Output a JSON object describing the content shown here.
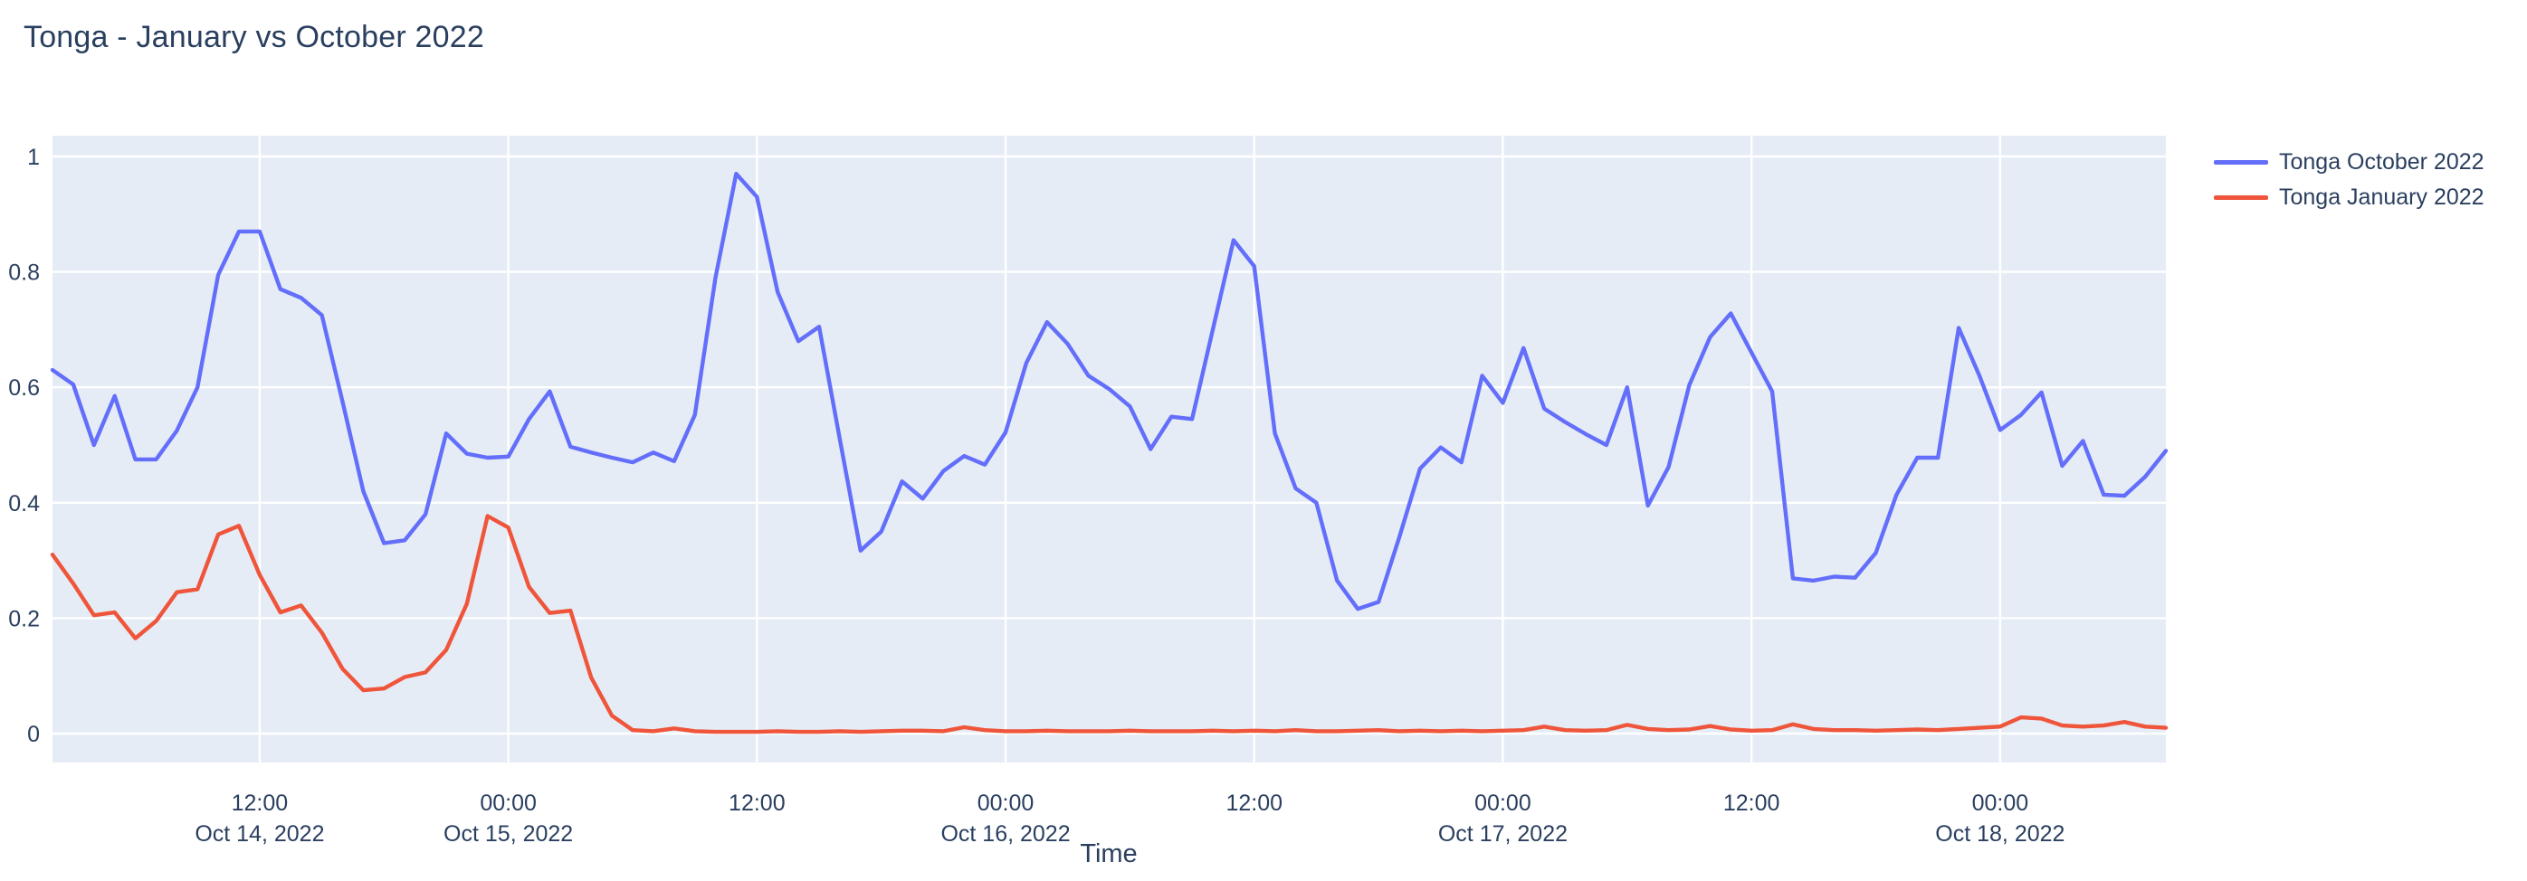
{
  "chart": {
    "title": "Tonga - January vs October 2022",
    "colors": {
      "title_text": "#2a3f5f",
      "plot_background": "#e5ecf6",
      "grid": "#ffffff",
      "page_background": "#ffffff",
      "october_line": "#636efa",
      "january_line": "#ef553b"
    }
  },
  "legend": {
    "items": [
      {
        "label": "Tonga October 2022",
        "color": "#636efa"
      },
      {
        "label": "Tonga January 2022",
        "color": "#ef553b"
      }
    ]
  },
  "chart_data": {
    "type": "line",
    "title": "Tonga - January vs October 2022",
    "xlabel": "Time",
    "ylabel": "",
    "ylim": [
      0,
      1
    ],
    "grid": true,
    "legend_position": "right-outside-top",
    "y_ticks": [
      "0",
      "0.2",
      "0.4",
      "0.6",
      "0.8",
      "1"
    ],
    "x_ticks": [
      {
        "hour_offset": 10,
        "line1": "12:00",
        "line2": "Oct 14, 2022"
      },
      {
        "hour_offset": 22,
        "line1": "00:00",
        "line2": "Oct 15, 2022"
      },
      {
        "hour_offset": 34,
        "line1": "12:00",
        "line2": ""
      },
      {
        "hour_offset": 46,
        "line1": "00:00",
        "line2": "Oct 16, 2022"
      },
      {
        "hour_offset": 58,
        "line1": "12:00",
        "line2": ""
      },
      {
        "hour_offset": 70,
        "line1": "00:00",
        "line2": "Oct 17, 2022"
      },
      {
        "hour_offset": 82,
        "line1": "12:00",
        "line2": ""
      },
      {
        "hour_offset": 94,
        "line1": "00:00",
        "line2": "Oct 18, 2022"
      }
    ],
    "x": [
      "2022-10-14 02:00",
      "2022-10-14 03:00",
      "2022-10-14 04:00",
      "2022-10-14 05:00",
      "2022-10-14 06:00",
      "2022-10-14 07:00",
      "2022-10-14 08:00",
      "2022-10-14 09:00",
      "2022-10-14 10:00",
      "2022-10-14 11:00",
      "2022-10-14 12:00",
      "2022-10-14 13:00",
      "2022-10-14 14:00",
      "2022-10-14 15:00",
      "2022-10-14 16:00",
      "2022-10-14 17:00",
      "2022-10-14 18:00",
      "2022-10-14 19:00",
      "2022-10-14 20:00",
      "2022-10-14 21:00",
      "2022-10-14 22:00",
      "2022-10-14 23:00",
      "2022-10-15 00:00",
      "2022-10-15 01:00",
      "2022-10-15 02:00",
      "2022-10-15 03:00",
      "2022-10-15 04:00",
      "2022-10-15 05:00",
      "2022-10-15 06:00",
      "2022-10-15 07:00",
      "2022-10-15 08:00",
      "2022-10-15 09:00",
      "2022-10-15 10:00",
      "2022-10-15 11:00",
      "2022-10-15 12:00",
      "2022-10-15 13:00",
      "2022-10-15 14:00",
      "2022-10-15 15:00",
      "2022-10-15 16:00",
      "2022-10-15 17:00",
      "2022-10-15 18:00",
      "2022-10-15 19:00",
      "2022-10-15 20:00",
      "2022-10-15 21:00",
      "2022-10-15 22:00",
      "2022-10-15 23:00",
      "2022-10-16 00:00",
      "2022-10-16 01:00",
      "2022-10-16 02:00",
      "2022-10-16 03:00",
      "2022-10-16 04:00",
      "2022-10-16 05:00",
      "2022-10-16 06:00",
      "2022-10-16 07:00",
      "2022-10-16 08:00",
      "2022-10-16 09:00",
      "2022-10-16 10:00",
      "2022-10-16 11:00",
      "2022-10-16 12:00",
      "2022-10-16 13:00",
      "2022-10-16 14:00",
      "2022-10-16 15:00",
      "2022-10-16 16:00",
      "2022-10-16 17:00",
      "2022-10-16 18:00",
      "2022-10-16 19:00",
      "2022-10-16 20:00",
      "2022-10-16 21:00",
      "2022-10-16 22:00",
      "2022-10-16 23:00",
      "2022-10-17 00:00",
      "2022-10-17 01:00",
      "2022-10-17 02:00",
      "2022-10-17 03:00",
      "2022-10-17 04:00",
      "2022-10-17 05:00",
      "2022-10-17 06:00",
      "2022-10-17 07:00",
      "2022-10-17 08:00",
      "2022-10-17 09:00",
      "2022-10-17 10:00",
      "2022-10-17 11:00",
      "2022-10-17 12:00",
      "2022-10-17 13:00",
      "2022-10-17 14:00",
      "2022-10-17 15:00",
      "2022-10-17 16:00",
      "2022-10-17 17:00",
      "2022-10-17 18:00",
      "2022-10-17 19:00",
      "2022-10-17 20:00",
      "2022-10-17 21:00",
      "2022-10-17 22:00",
      "2022-10-17 23:00",
      "2022-10-18 00:00",
      "2022-10-18 01:00",
      "2022-10-18 02:00",
      "2022-10-18 03:00",
      "2022-10-18 04:00",
      "2022-10-18 05:00",
      "2022-10-18 06:00",
      "2022-10-18 07:00",
      "2022-10-18 08:00"
    ],
    "series": [
      {
        "name": "Tonga October 2022",
        "color": "#636efa",
        "values": [
          0.63,
          0.605,
          0.5,
          0.585,
          0.475,
          0.475,
          0.525,
          0.6,
          0.795,
          0.87,
          0.87,
          0.77,
          0.755,
          0.725,
          0.575,
          0.42,
          0.33,
          0.335,
          0.38,
          0.52,
          0.485,
          0.478,
          0.48,
          0.545,
          0.593,
          0.497,
          0.487,
          0.478,
          0.47,
          0.487,
          0.472,
          0.552,
          0.79,
          0.97,
          0.93,
          0.765,
          0.68,
          0.705,
          0.51,
          0.317,
          0.35,
          0.437,
          0.407,
          0.455,
          0.481,
          0.466,
          0.522,
          0.642,
          0.713,
          0.675,
          0.62,
          0.597,
          0.567,
          0.493,
          0.549,
          0.545,
          0.7,
          0.855,
          0.81,
          0.52,
          0.425,
          0.4,
          0.265,
          0.216,
          0.228,
          0.34,
          0.459,
          0.496,
          0.47,
          0.62,
          0.573,
          0.668,
          0.563,
          0.54,
          0.519,
          0.5,
          0.6,
          0.395,
          0.462,
          0.604,
          0.687,
          0.728,
          0.66,
          0.593,
          0.269,
          0.265,
          0.272,
          0.27,
          0.313,
          0.414,
          0.478,
          0.478,
          0.703,
          0.62,
          0.526,
          0.552,
          0.591,
          0.464,
          0.507,
          0.414,
          0.412,
          0.445,
          0.49
        ]
      },
      {
        "name": "Tonga January 2022",
        "color": "#ef553b",
        "values": [
          0.31,
          0.26,
          0.205,
          0.21,
          0.165,
          0.195,
          0.245,
          0.25,
          0.345,
          0.36,
          0.275,
          0.21,
          0.222,
          0.175,
          0.112,
          0.075,
          0.078,
          0.098,
          0.106,
          0.145,
          0.225,
          0.377,
          0.357,
          0.254,
          0.209,
          0.213,
          0.097,
          0.031,
          0.006,
          0.004,
          0.009,
          0.004,
          0.003,
          0.003,
          0.003,
          0.004,
          0.003,
          0.003,
          0.004,
          0.003,
          0.004,
          0.005,
          0.005,
          0.004,
          0.011,
          0.006,
          0.004,
          0.004,
          0.005,
          0.004,
          0.004,
          0.004,
          0.005,
          0.004,
          0.004,
          0.004,
          0.005,
          0.004,
          0.005,
          0.004,
          0.006,
          0.004,
          0.004,
          0.005,
          0.006,
          0.004,
          0.005,
          0.004,
          0.005,
          0.004,
          0.005,
          0.006,
          0.012,
          0.006,
          0.005,
          0.006,
          0.015,
          0.008,
          0.006,
          0.007,
          0.013,
          0.007,
          0.005,
          0.006,
          0.016,
          0.008,
          0.006,
          0.006,
          0.005,
          0.006,
          0.007,
          0.006,
          0.008,
          0.01,
          0.012,
          0.028,
          0.026,
          0.014,
          0.012,
          0.014,
          0.02,
          0.012,
          0.01
        ]
      }
    ]
  }
}
